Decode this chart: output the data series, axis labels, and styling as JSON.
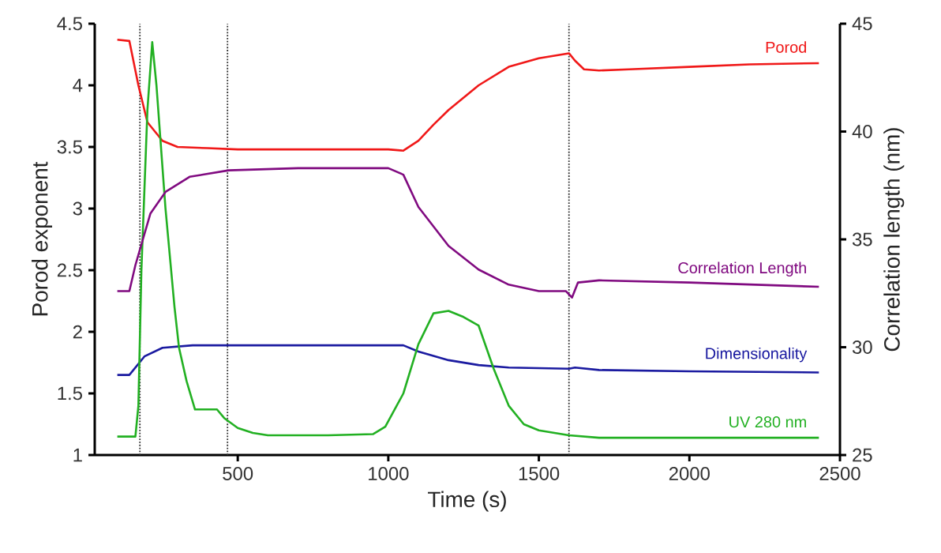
{
  "chart_data": {
    "type": "line",
    "xlabel": "Time (s)",
    "ylabel": "Porod exponent",
    "y2label": "Correlation length (nm)",
    "xlim": [
      25,
      2500
    ],
    "xticks": [
      500,
      1000,
      1500,
      2000,
      2500
    ],
    "ylim": [
      1,
      4.5
    ],
    "yticks": [
      1,
      1.5,
      2,
      2.5,
      3,
      3.5,
      4,
      4.5
    ],
    "y2lim": [
      25,
      45
    ],
    "y2ticks": [
      25,
      30,
      35,
      40,
      45
    ],
    "series": [
      {
        "name": "Porod",
        "color": "#f01818",
        "x": [
          100,
          140,
          170,
          200,
          250,
          300,
          400,
          500,
          700,
          900,
          1000,
          1050,
          1100,
          1150,
          1200,
          1300,
          1400,
          1500,
          1600,
          1620,
          1650,
          1700,
          1800,
          2000,
          2200,
          2430
        ],
        "values": [
          4.37,
          4.36,
          4.0,
          3.7,
          3.55,
          3.5,
          3.49,
          3.48,
          3.48,
          3.48,
          3.48,
          3.47,
          3.55,
          3.68,
          3.8,
          4.0,
          4.15,
          4.22,
          4.26,
          4.2,
          4.13,
          4.12,
          4.13,
          4.15,
          4.17,
          4.18
        ]
      },
      {
        "name": "Correlation Length",
        "color": "#800a80",
        "axis": "y2",
        "x": [
          100,
          140,
          160,
          210,
          260,
          340,
          470,
          700,
          1000,
          1050,
          1100,
          1200,
          1300,
          1400,
          1500,
          1590,
          1610,
          1630,
          1700,
          2000,
          2430
        ],
        "values": [
          32.6,
          32.6,
          33.8,
          36.2,
          37.2,
          37.9,
          38.2,
          38.3,
          38.3,
          38.0,
          36.5,
          34.7,
          33.6,
          32.9,
          32.6,
          32.6,
          32.3,
          33.0,
          33.1,
          33.0,
          32.8
        ]
      },
      {
        "name": "Dimensionality",
        "color": "#1a1aa0",
        "x": [
          100,
          140,
          190,
          250,
          350,
          700,
          1050,
          1100,
          1200,
          1300,
          1400,
          1600,
          1620,
          1700,
          2000,
          2430
        ],
        "values": [
          1.65,
          1.65,
          1.8,
          1.87,
          1.89,
          1.89,
          1.89,
          1.84,
          1.77,
          1.73,
          1.71,
          1.7,
          1.71,
          1.69,
          1.68,
          1.67
        ]
      },
      {
        "name": "UV 280 nm",
        "color": "#22b022",
        "x": [
          100,
          160,
          170,
          180,
          200,
          216,
          230,
          260,
          290,
          305,
          330,
          358,
          431,
          455,
          500,
          550,
          600,
          800,
          950,
          990,
          1050,
          1100,
          1150,
          1200,
          1250,
          1300,
          1350,
          1400,
          1450,
          1500,
          1600,
          1700,
          2430
        ],
        "values": [
          1.15,
          1.15,
          1.4,
          2.5,
          3.8,
          4.35,
          4.0,
          3.0,
          2.2,
          1.87,
          1.6,
          1.37,
          1.37,
          1.3,
          1.22,
          1.18,
          1.16,
          1.16,
          1.17,
          1.23,
          1.5,
          1.9,
          2.15,
          2.17,
          2.12,
          2.05,
          1.7,
          1.4,
          1.25,
          1.2,
          1.16,
          1.14,
          1.14
        ]
      }
    ],
    "ref_lines": [
      {
        "axis": "x",
        "value": 175,
        "color": "#303030",
        "line_style": "dotted"
      },
      {
        "axis": "x",
        "value": 466,
        "color": "#303030",
        "line_style": "dotted"
      },
      {
        "axis": "x",
        "value": 1600,
        "color": "#303030",
        "line_style": "dotted"
      }
    ]
  }
}
